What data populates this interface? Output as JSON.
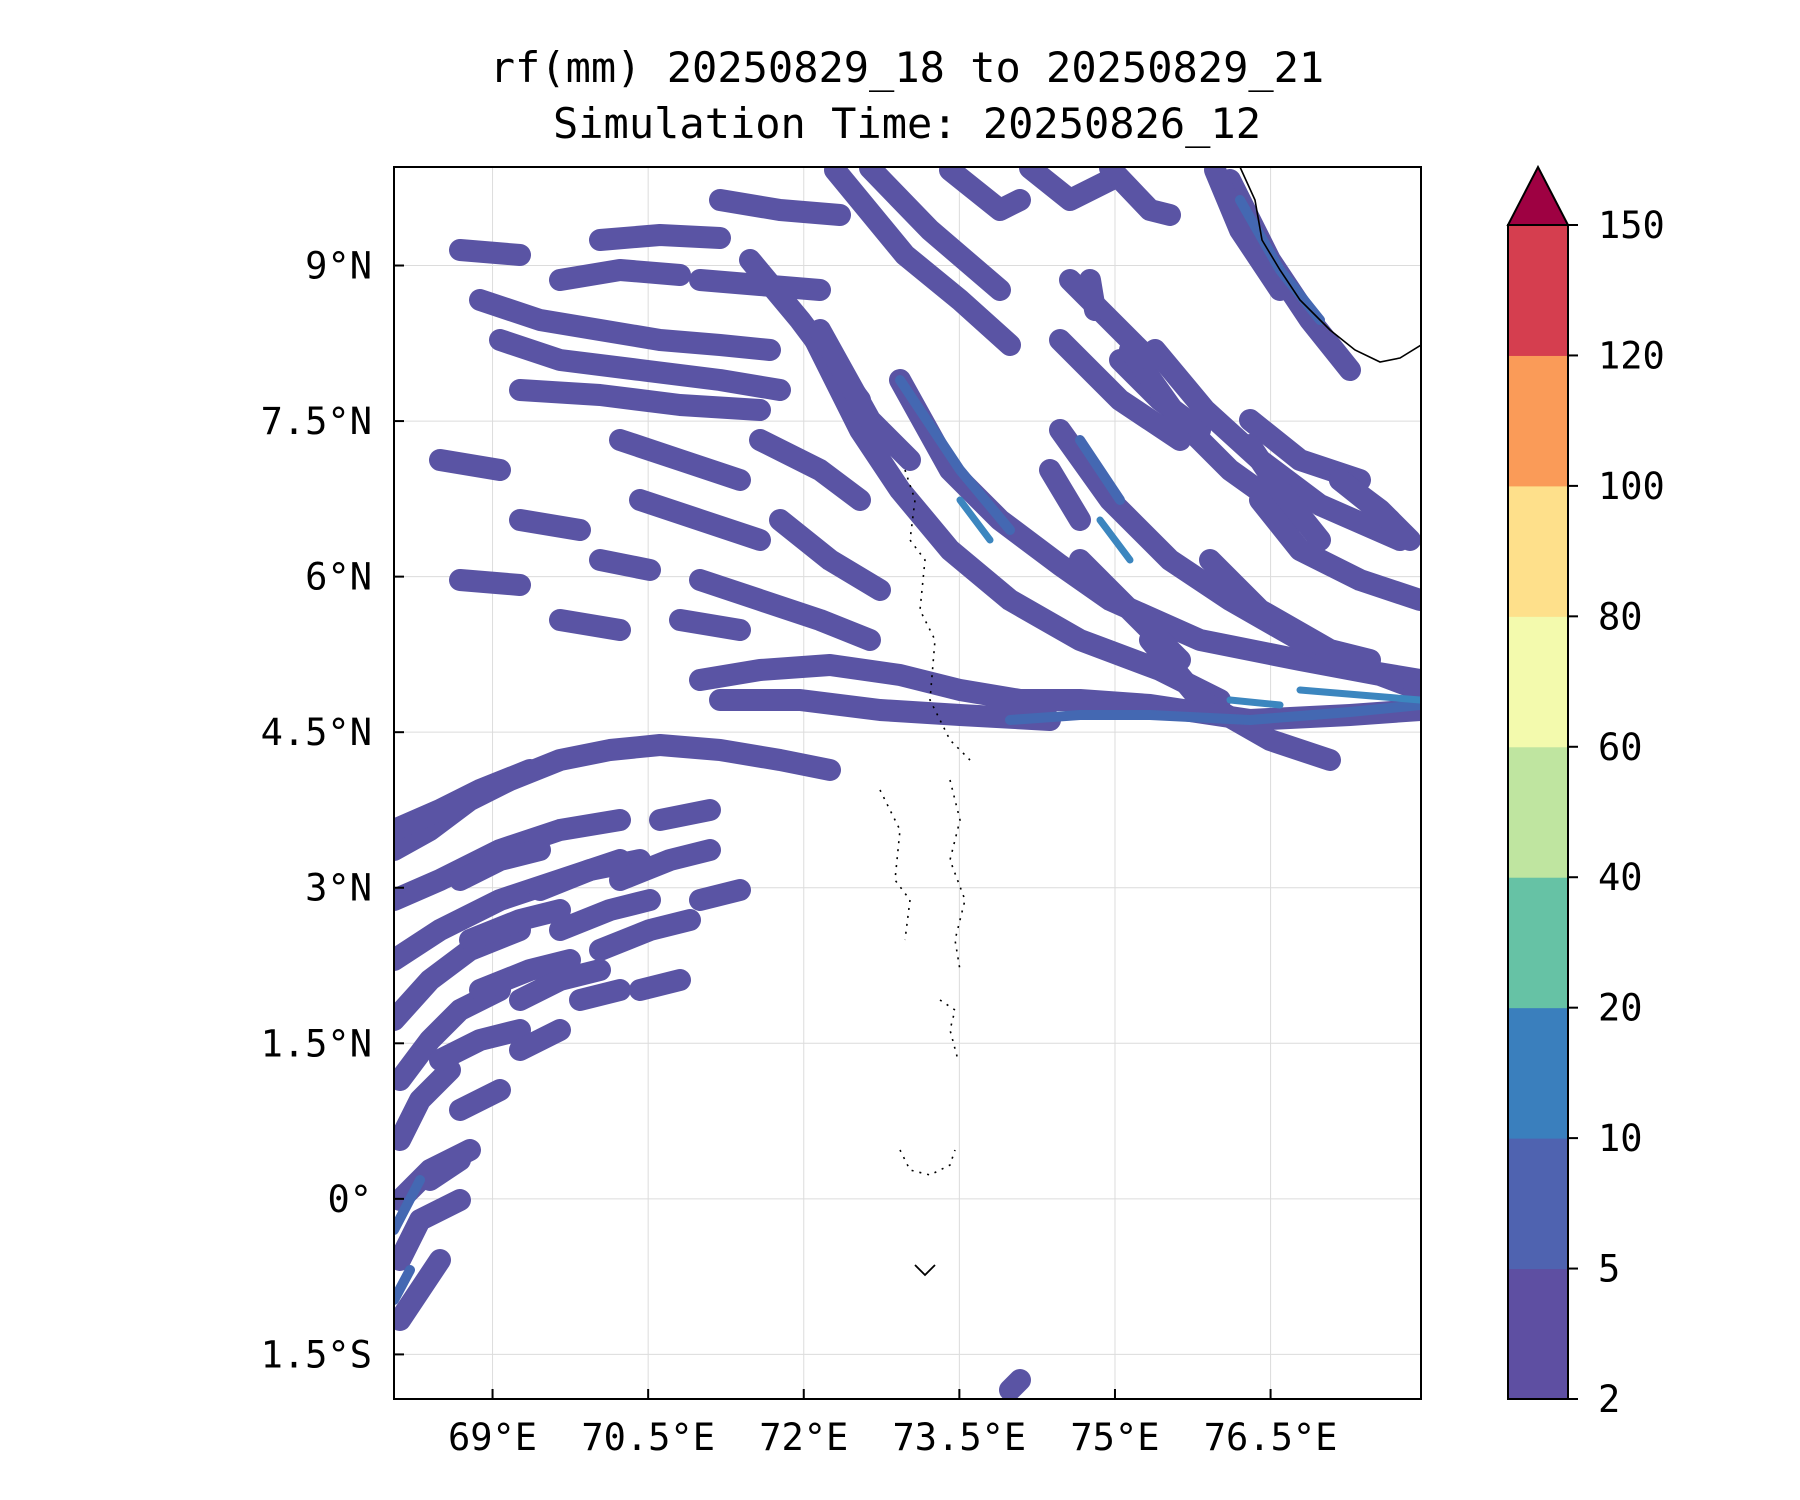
{
  "map": {
    "title_line1": "rf(mm) 20250829_18 to 20250829_21",
    "title_line2": "Simulation Time: 20250826_12",
    "lon_ticks": [
      "69°E",
      "70.5°E",
      "72°E",
      "73.5°E",
      "75°E",
      "76.5°E"
    ],
    "lon_tick_values": [
      69,
      70.5,
      72,
      73.5,
      75,
      76.5
    ],
    "lat_ticks": [
      "9°N",
      "7.5°N",
      "6°N",
      "4.5°N",
      "3°N",
      "1.5°N",
      "0°",
      "1.5°S"
    ],
    "lat_tick_values": [
      9,
      7.5,
      6,
      4.5,
      3,
      1.5,
      0,
      -1.5
    ],
    "lon_range": [
      68.05,
      77.95
    ],
    "lat_range": [
      -1.93,
      9.95
    ],
    "gridlines": true
  },
  "colorbar": {
    "levels": [
      "2",
      "5",
      "10",
      "20",
      "40",
      "60",
      "80",
      "100",
      "120",
      "150"
    ],
    "colors": [
      "#5e4fa2",
      "#4f63b0",
      "#3a7fbd",
      "#66c2a5",
      "#bfe5a0",
      "#f3faad",
      "#fee08b",
      "#fa9b58",
      "#d53e4f"
    ],
    "extend_color": "#9e0142",
    "extend": "max"
  },
  "rain_colors": {
    "light": "#5a54a4",
    "medium": "#4468b2",
    "heavy": "#3c86bf"
  }
}
